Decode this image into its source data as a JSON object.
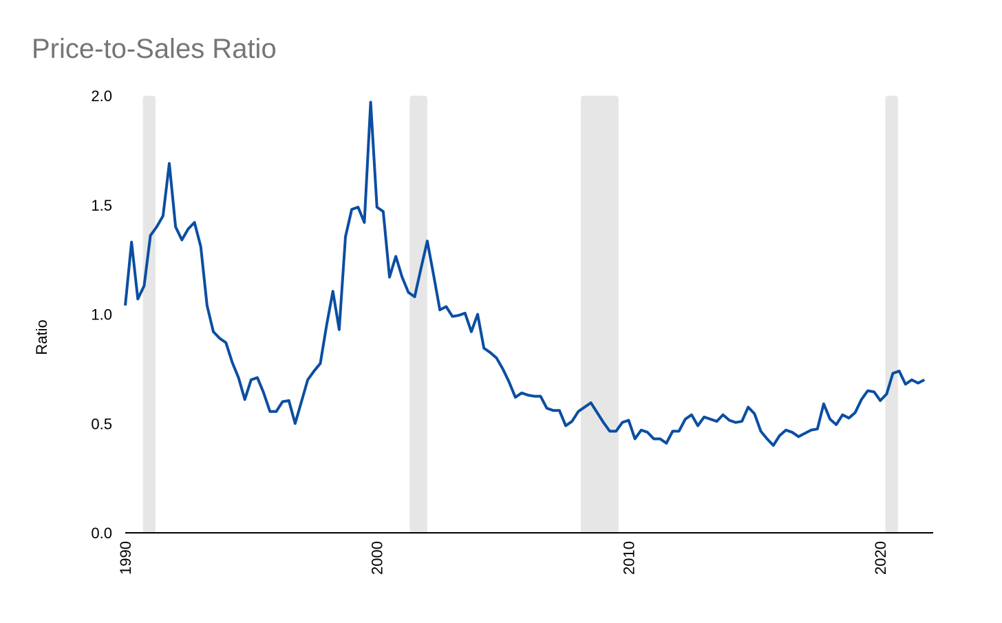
{
  "chart_data": {
    "type": "line",
    "title": "Price-to-Sales Ratio",
    "y_label": "Ratio",
    "x": [
      1990,
      1990.25,
      1990.5,
      1990.75,
      1991,
      1991.25,
      1991.5,
      1991.75,
      1992,
      1992.25,
      1992.5,
      1992.75,
      1993,
      1993.25,
      1993.5,
      1993.75,
      1994,
      1994.25,
      1994.5,
      1994.75,
      1995,
      1995.25,
      1995.5,
      1995.75,
      1996,
      1996.25,
      1996.5,
      1996.75,
      1997,
      1997.25,
      1997.5,
      1997.75,
      1998,
      1998.25,
      1998.5,
      1998.75,
      1999,
      1999.25,
      1999.5,
      1999.75,
      2000,
      2000.25,
      2000.5,
      2000.75,
      2001,
      2001.25,
      2001.5,
      2001.75,
      2002,
      2002.25,
      2002.5,
      2002.75,
      2003,
      2003.25,
      2003.5,
      2003.75,
      2004,
      2004.25,
      2004.5,
      2004.75,
      2005,
      2005.25,
      2005.5,
      2005.75,
      2006,
      2006.25,
      2006.5,
      2006.75,
      2007,
      2007.25,
      2007.5,
      2007.75,
      2008,
      2008.25,
      2008.5,
      2008.75,
      2009,
      2009.25,
      2009.5,
      2009.75,
      2010,
      2010.25,
      2010.5,
      2010.75,
      2011,
      2011.25,
      2011.5,
      2011.75,
      2012,
      2012.25,
      2012.5,
      2012.75,
      2013,
      2013.25,
      2013.5,
      2013.75,
      2014,
      2014.25,
      2014.5,
      2014.75,
      2015,
      2015.25,
      2015.5,
      2015.75,
      2016,
      2016.25,
      2016.5,
      2016.75,
      2017,
      2017.25,
      2017.5,
      2017.75,
      2018,
      2018.25,
      2018.5,
      2018.75,
      2019,
      2019.25,
      2019.5,
      2019.75,
      2020,
      2020.25,
      2020.5,
      2020.75,
      2021,
      2021.25,
      2021.5,
      2021.75
    ],
    "series": [
      {
        "name": "Price-to-Sales Ratio",
        "color": "#0b4ea2",
        "values": [
          1.04,
          1.33,
          1.07,
          1.13,
          1.36,
          1.4,
          1.45,
          1.69,
          1.4,
          1.34,
          1.39,
          1.42,
          1.31,
          1.04,
          0.92,
          0.89,
          0.87,
          0.78,
          0.71,
          0.61,
          0.7,
          0.71,
          0.64,
          0.555,
          0.555,
          0.6,
          0.605,
          0.5,
          0.6,
          0.7,
          0.74,
          0.775,
          0.95,
          1.105,
          0.93,
          1.355,
          1.48,
          1.49,
          1.42,
          1.97,
          1.49,
          1.47,
          1.17,
          1.265,
          1.17,
          1.1,
          1.08,
          1.21,
          1.335,
          1.18,
          1.02,
          1.035,
          0.99,
          0.995,
          1.005,
          0.92,
          1.0,
          0.845,
          0.825,
          0.8,
          0.75,
          0.69,
          0.62,
          0.64,
          0.63,
          0.625,
          0.625,
          0.57,
          0.56,
          0.56,
          0.49,
          0.51,
          0.555,
          0.575,
          0.595,
          0.55,
          0.505,
          0.465,
          0.465,
          0.505,
          0.515,
          0.43,
          0.47,
          0.46,
          0.43,
          0.43,
          0.41,
          0.465,
          0.465,
          0.52,
          0.54,
          0.49,
          0.53,
          0.52,
          0.51,
          0.54,
          0.515,
          0.505,
          0.51,
          0.575,
          0.545,
          0.465,
          0.43,
          0.4,
          0.445,
          0.47,
          0.46,
          0.44,
          0.455,
          0.47,
          0.475,
          0.59,
          0.52,
          0.495,
          0.54,
          0.525,
          0.55,
          0.61,
          0.65,
          0.645,
          0.605,
          0.635,
          0.73,
          0.74,
          0.68,
          0.7,
          0.685,
          0.7
        ]
      }
    ],
    "recessions": [
      [
        1990.7,
        1991.2
      ],
      [
        2001.3,
        2002.0
      ],
      [
        2008.1,
        2009.6
      ],
      [
        2020.2,
        2020.7
      ]
    ],
    "recession_color": "#e6e6e6",
    "xlim": [
      1990,
      2022.1
    ],
    "xticks": [
      1990,
      2000,
      2010,
      2020
    ],
    "ylim": [
      0,
      2
    ],
    "yticks": [
      {
        "value": 0,
        "label": "0.0"
      },
      0.5,
      {
        "value": 1,
        "label": "1.0"
      },
      1.5,
      {
        "value": 2,
        "label": "2.0"
      }
    ],
    "grid": false
  }
}
